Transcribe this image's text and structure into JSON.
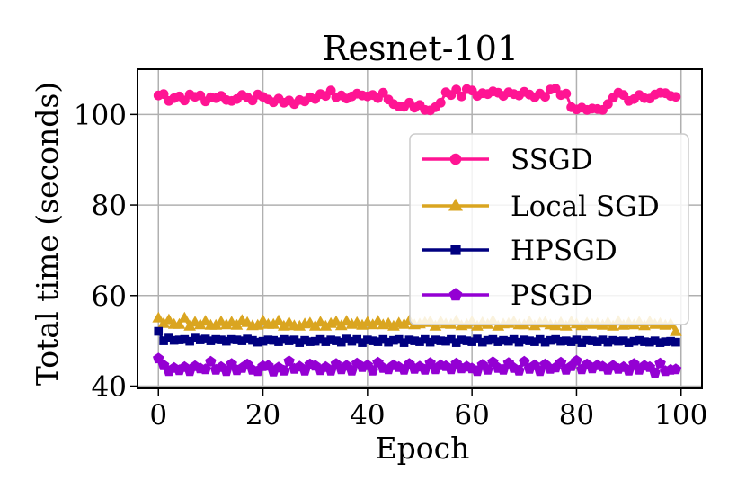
{
  "chart_data": {
    "type": "line",
    "title": "Resnet-101",
    "xlabel": "Epoch",
    "ylabel": "Total time (seconds)",
    "xlim": [
      -4,
      104
    ],
    "ylim": [
      39.5,
      110
    ],
    "grid": true,
    "legend_position": "right",
    "x_ticks": [
      {
        "value": 0,
        "label": "0"
      },
      {
        "value": 20,
        "label": "20"
      },
      {
        "value": 40,
        "label": "40"
      },
      {
        "value": 60,
        "label": "60"
      },
      {
        "value": 80,
        "label": "80"
      },
      {
        "value": 100,
        "label": "100"
      }
    ],
    "y_ticks": [
      {
        "value": 40,
        "label": "40"
      },
      {
        "value": 60,
        "label": "60"
      },
      {
        "value": 80,
        "label": "80"
      },
      {
        "value": 100,
        "label": "100"
      }
    ],
    "x": [
      0,
      1,
      2,
      3,
      4,
      5,
      6,
      7,
      8,
      9,
      10,
      11,
      12,
      13,
      14,
      15,
      16,
      17,
      18,
      19,
      20,
      21,
      22,
      23,
      24,
      25,
      26,
      27,
      28,
      29,
      30,
      31,
      32,
      33,
      34,
      35,
      36,
      37,
      38,
      39,
      40,
      41,
      42,
      43,
      44,
      45,
      46,
      47,
      48,
      49,
      50,
      51,
      52,
      53,
      54,
      55,
      56,
      57,
      58,
      59,
      60,
      61,
      62,
      63,
      64,
      65,
      66,
      67,
      68,
      69,
      70,
      71,
      72,
      73,
      74,
      75,
      76,
      77,
      78,
      79,
      80,
      81,
      82,
      83,
      84,
      85,
      86,
      87,
      88,
      89,
      90,
      91,
      92,
      93,
      94,
      95,
      96,
      97,
      98,
      99
    ],
    "series": [
      {
        "name": "SSGD",
        "color": "#ff1493",
        "marker": "circle",
        "values": [
          104.2,
          104.5,
          103.0,
          103.6,
          104.0,
          103.1,
          104.4,
          103.9,
          104.2,
          102.9,
          103.8,
          103.6,
          104.1,
          103.2,
          103.0,
          103.4,
          104.3,
          103.8,
          103.1,
          104.4,
          103.9,
          103.3,
          102.7,
          103.5,
          102.6,
          103.1,
          102.3,
          103.2,
          102.9,
          103.8,
          103.4,
          104.5,
          104.1,
          105.3,
          103.8,
          104.2,
          103.5,
          104.0,
          104.6,
          104.2,
          104.0,
          104.3,
          103.6,
          104.8,
          103.3,
          102.3,
          101.8,
          101.7,
          102.6,
          101.5,
          102.1,
          101.0,
          100.9,
          101.6,
          102.6,
          104.9,
          104.3,
          105.5,
          104.0,
          105.6,
          105.3,
          104.1,
          104.7,
          104.5,
          105.1,
          104.8,
          104.1,
          104.9,
          104.5,
          104.2,
          105.0,
          104.4,
          103.8,
          104.6,
          103.9,
          105.5,
          105.7,
          104.3,
          104.6,
          101.6,
          101.1,
          101.5,
          101.0,
          101.3,
          101.2,
          101.0,
          102.3,
          103.7,
          104.8,
          104.3,
          103.0,
          103.4,
          104.3,
          103.6,
          103.5,
          104.4,
          104.8,
          104.7,
          104.1,
          103.9
        ]
      },
      {
        "name": "Local SGD",
        "color": "#daa520",
        "marker": "triangle",
        "values": [
          55.0,
          53.8,
          54.6,
          53.6,
          53.6,
          55.0,
          53.2,
          54.1,
          53.5,
          54.3,
          53.4,
          53.4,
          54.2,
          53.5,
          54.1,
          53.4,
          54.5,
          54.0,
          53.3,
          53.4,
          54.4,
          53.6,
          53.6,
          54.4,
          53.2,
          54.0,
          53.3,
          53.2,
          53.7,
          53.9,
          53.2,
          54.1,
          53.2,
          53.8,
          54.2,
          53.3,
          54.3,
          53.6,
          54.0,
          53.4,
          54.1,
          53.5,
          54.3,
          53.5,
          53.8,
          53.2,
          53.9,
          53.6,
          54.4,
          53.5,
          53.7,
          54.0,
          54.2,
          53.2,
          54.2,
          53.7,
          53.6,
          54.4,
          53.3,
          53.6,
          54.2,
          53.2,
          54.0,
          53.6,
          54.4,
          53.2,
          53.7,
          53.8,
          54.2,
          53.5,
          53.5,
          54.2,
          53.3,
          53.9,
          54.1,
          53.5,
          53.3,
          54.0,
          53.2,
          54.2,
          53.7,
          53.3,
          53.9,
          53.6,
          53.8,
          53.4,
          54.0,
          53.2,
          54.3,
          53.4,
          53.9,
          53.5,
          54.1,
          53.3,
          54.2,
          53.6,
          53.8,
          53.4,
          53.7,
          52.0
        ]
      },
      {
        "name": "HPSGD",
        "color": "#000080",
        "marker": "square",
        "values": [
          52.1,
          50.0,
          50.6,
          50.1,
          50.2,
          50.3,
          49.9,
          50.6,
          50.2,
          50.4,
          50.0,
          50.3,
          50.2,
          49.9,
          50.3,
          50.2,
          50.0,
          50.4,
          50.1,
          49.7,
          49.9,
          50.2,
          50.1,
          49.8,
          50.3,
          50.0,
          50.2,
          49.6,
          50.1,
          49.8,
          49.9,
          50.3,
          49.8,
          50.2,
          50.0,
          49.7,
          50.4,
          49.9,
          50.3,
          49.6,
          50.2,
          50.0,
          49.8,
          50.3,
          49.7,
          50.1,
          50.3,
          49.6,
          50.2,
          50.0,
          49.8,
          50.3,
          49.7,
          50.2,
          50.0,
          49.9,
          50.3,
          49.6,
          50.2,
          50.0,
          49.8,
          50.4,
          49.7,
          50.1,
          50.3,
          49.8,
          50.1,
          49.9,
          50.3,
          49.7,
          50.2,
          50.0,
          49.8,
          50.3,
          49.7,
          50.1,
          50.3,
          49.9,
          50.0,
          49.8,
          50.2,
          49.6,
          50.1,
          50.0,
          49.8,
          50.2,
          49.7,
          50.1,
          49.9,
          50.0,
          49.6,
          49.9,
          50.1,
          49.8,
          49.7,
          50.0,
          49.6,
          49.8,
          49.9,
          49.7
        ]
      },
      {
        "name": "PSGD",
        "color": "#9400d3",
        "marker": "pentagon",
        "values": [
          46.1,
          44.6,
          43.3,
          44.0,
          43.5,
          44.2,
          43.3,
          44.4,
          43.9,
          43.7,
          45.4,
          43.6,
          44.2,
          43.3,
          44.9,
          43.5,
          44.0,
          44.8,
          43.6,
          43.3,
          44.4,
          44.5,
          43.2,
          44.1,
          43.4,
          45.5,
          43.8,
          44.3,
          43.4,
          44.8,
          44.5,
          43.5,
          44.2,
          43.4,
          44.9,
          43.7,
          44.5,
          43.4,
          45.0,
          44.2,
          44.6,
          43.4,
          45.2,
          44.0,
          43.7,
          44.6,
          44.2,
          43.6,
          44.9,
          43.8,
          44.3,
          43.6,
          45.1,
          43.7,
          44.6,
          44.4,
          43.7,
          45.0,
          43.9,
          44.3,
          43.9,
          43.3,
          44.7,
          43.6,
          45.3,
          44.0,
          43.6,
          45.1,
          44.0,
          43.4,
          45.4,
          43.8,
          44.6,
          43.3,
          44.8,
          43.8,
          44.1,
          45.2,
          43.6,
          44.4,
          45.6,
          43.7,
          44.8,
          43.9,
          44.6,
          44.3,
          43.6,
          44.5,
          43.8,
          44.2,
          43.4,
          44.9,
          43.6,
          44.5,
          44.2,
          42.9,
          45.0,
          43.3,
          43.6,
          43.7
        ]
      }
    ]
  }
}
